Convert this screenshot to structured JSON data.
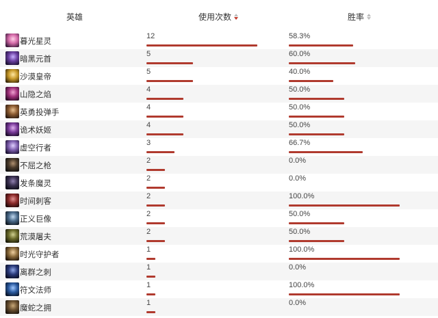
{
  "header": {
    "hero_label": "英雄",
    "usage_label": "使用次数",
    "winrate_label": "胜率"
  },
  "rows": [
    {
      "name": "暮光星灵",
      "uses": "12",
      "winrate": "58.3%",
      "uses_frac": 1.0,
      "win_frac": 0.583,
      "avatar": "avatar-pink"
    },
    {
      "name": "暗黑元首",
      "uses": "5",
      "winrate": "60.0%",
      "uses_frac": 0.417,
      "win_frac": 0.6,
      "avatar": "avatar-purple"
    },
    {
      "name": "沙漠皇帝",
      "uses": "5",
      "winrate": "40.0%",
      "uses_frac": 0.417,
      "win_frac": 0.4,
      "avatar": "avatar-gold"
    },
    {
      "name": "山隐之焰",
      "uses": "4",
      "winrate": "50.0%",
      "uses_frac": 0.333,
      "win_frac": 0.5,
      "avatar": "avatar-magenta"
    },
    {
      "name": "英勇投弹手",
      "uses": "4",
      "winrate": "50.0%",
      "uses_frac": 0.333,
      "win_frac": 0.5,
      "avatar": "avatar-brown"
    },
    {
      "name": "诡术妖姬",
      "uses": "4",
      "winrate": "50.0%",
      "uses_frac": 0.333,
      "win_frac": 0.5,
      "avatar": "avatar-violet"
    },
    {
      "name": "虚空行者",
      "uses": "3",
      "winrate": "66.7%",
      "uses_frac": 0.25,
      "win_frac": 0.667,
      "avatar": "avatar-lilac"
    },
    {
      "name": "不屈之枪",
      "uses": "2",
      "winrate": "0.0%",
      "uses_frac": 0.167,
      "win_frac": 0.0,
      "avatar": "avatar-dark"
    },
    {
      "name": "发条魔灵",
      "uses": "2",
      "winrate": "0.0%",
      "uses_frac": 0.167,
      "win_frac": 0.0,
      "avatar": "avatar-dark2"
    },
    {
      "name": "时间刺客",
      "uses": "2",
      "winrate": "100.0%",
      "uses_frac": 0.167,
      "win_frac": 1.0,
      "avatar": "avatar-red"
    },
    {
      "name": "正义巨像",
      "uses": "2",
      "winrate": "50.0%",
      "uses_frac": 0.167,
      "win_frac": 0.5,
      "avatar": "avatar-steel"
    },
    {
      "name": "荒漠屠夫",
      "uses": "2",
      "winrate": "50.0%",
      "uses_frac": 0.167,
      "win_frac": 0.5,
      "avatar": "avatar-olive"
    },
    {
      "name": "时光守护者",
      "uses": "1",
      "winrate": "100.0%",
      "uses_frac": 0.083,
      "win_frac": 1.0,
      "avatar": "avatar-bronze"
    },
    {
      "name": "离群之刺",
      "uses": "1",
      "winrate": "0.0%",
      "uses_frac": 0.083,
      "win_frac": 0.0,
      "avatar": "avatar-navy"
    },
    {
      "name": "符文法师",
      "uses": "1",
      "winrate": "100.0%",
      "uses_frac": 0.083,
      "win_frac": 1.0,
      "avatar": "avatar-blue"
    },
    {
      "name": "魔蛇之拥",
      "uses": "1",
      "winrate": "0.0%",
      "uses_frac": 0.083,
      "win_frac": 0.0,
      "avatar": "avatar-sepia"
    }
  ],
  "colors": {
    "bar": "#b03a2e",
    "sort_active": "#c0392b",
    "sort_inactive": "#bdbdbd",
    "stripe": "#f5f5f5"
  }
}
